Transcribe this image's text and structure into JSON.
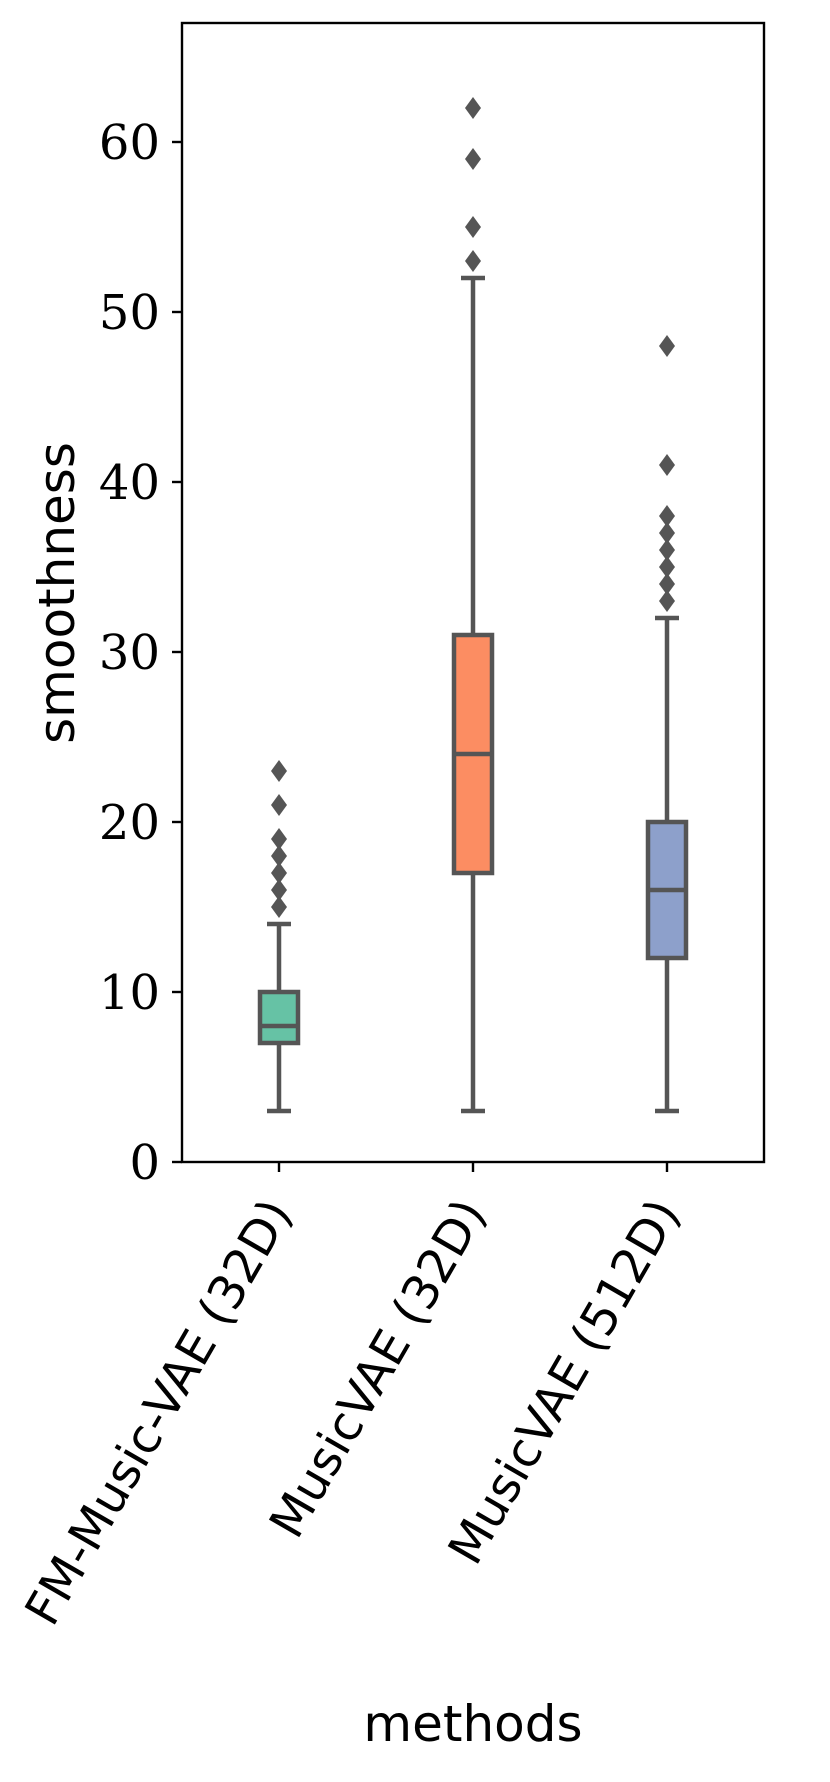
{
  "chart_data": {
    "type": "box",
    "title": "",
    "xlabel": "methods",
    "ylabel": "smoothness",
    "ylim": [
      0,
      67
    ],
    "yticks": [
      0,
      10,
      20,
      30,
      40,
      50,
      60
    ],
    "grid": false,
    "categories": [
      "FM-Music-VAE (32D)",
      "MusicVAE (32D)",
      "MusicVAE (512D)"
    ],
    "boxes": [
      {
        "name": "FM-Music-VAE (32D)",
        "color": "#66c2a5",
        "whisker_low": 3,
        "q1": 7,
        "median": 8,
        "q3": 10,
        "whisker_high": 14,
        "outliers": [
          15,
          16,
          17,
          18,
          19,
          21,
          23
        ]
      },
      {
        "name": "MusicVAE (32D)",
        "color": "#fc8d62",
        "whisker_low": 3,
        "q1": 17,
        "median": 24,
        "q3": 31,
        "whisker_high": 52,
        "outliers": [
          53,
          55,
          59,
          62
        ]
      },
      {
        "name": "MusicVAE (512D)",
        "color": "#8da0cb",
        "whisker_low": 3,
        "q1": 12,
        "median": 16,
        "q3": 20,
        "whisker_high": 32,
        "outliers": [
          33,
          34,
          35,
          36,
          37,
          38,
          41,
          48
        ]
      }
    ]
  }
}
